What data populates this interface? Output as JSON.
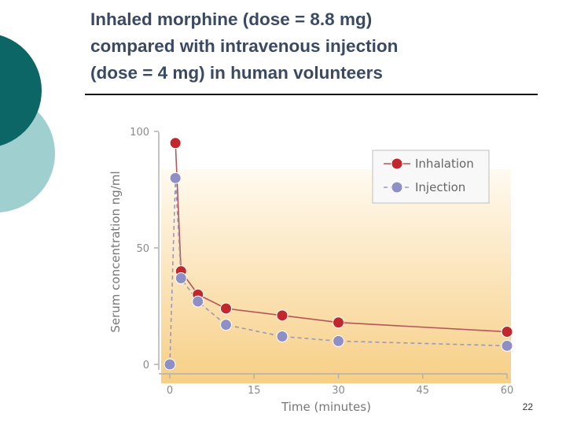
{
  "slide": {
    "title": "Inhaled morphine (dose = 8.8 mg)\ncompared with intravenous injection\n(dose = 4 mg) in human volunteers",
    "page_number": "22"
  },
  "colors": {
    "deco_dark": "#0d6666",
    "deco_light": "#9fcfcf",
    "inhalation": "#c0282d",
    "injection": "#8e8fc4",
    "inhalation_line": "#b5555a",
    "injection_line": "#9a9ab8",
    "gradient_top": "#fffaf0",
    "gradient_bottom": "#f7cf86"
  },
  "chart_data": {
    "type": "line",
    "xlabel": "Time (minutes)",
    "ylabel": "Serum concentration ng/ml",
    "x_ticks": [
      "0",
      "15",
      "30",
      "45",
      "60"
    ],
    "y_ticks": [
      "0",
      "50",
      "100"
    ],
    "xlim": [
      0,
      60
    ],
    "ylim": [
      0,
      100
    ],
    "grid": false,
    "legend_position": "top-right",
    "series": [
      {
        "name": "Inhalation",
        "x": [
          1,
          2,
          5,
          10,
          20,
          30,
          60
        ],
        "y": [
          95,
          40,
          30,
          24,
          21,
          18,
          14
        ]
      },
      {
        "name": "Injection",
        "x": [
          0,
          1,
          2,
          5,
          10,
          20,
          30,
          60
        ],
        "y": [
          0,
          80,
          37,
          27,
          17,
          12,
          10,
          8
        ]
      }
    ]
  }
}
